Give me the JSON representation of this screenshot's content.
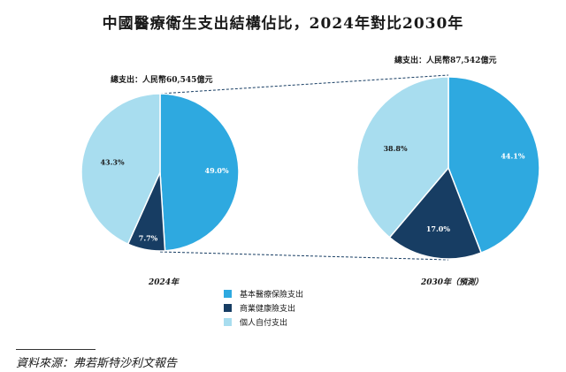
{
  "chart_data": {
    "type": "pie",
    "title": "中國醫療衛生支出結構佔比，2024年對比2030年",
    "categories": [
      "基本醫療保險支出",
      "商業健康險支出",
      "個人自付支出"
    ],
    "colors": [
      "#2ea9e0",
      "#173d63",
      "#a8ddef"
    ],
    "pies": [
      {
        "year_label": "2024年",
        "total_label": "總支出：人民幣60,545億元",
        "values": [
          49.0,
          7.7,
          43.3
        ],
        "value_labels": [
          "49.0%",
          "7.7%",
          "43.3%"
        ]
      },
      {
        "year_label": "2030年（預測）",
        "total_label": "總支出：人民幣87,542億元",
        "values": [
          44.1,
          17.0,
          38.8
        ],
        "value_labels": [
          "44.1%",
          "17.0%",
          "38.8%"
        ]
      }
    ]
  },
  "source": "資料來源：弗若斯特沙利文報告"
}
